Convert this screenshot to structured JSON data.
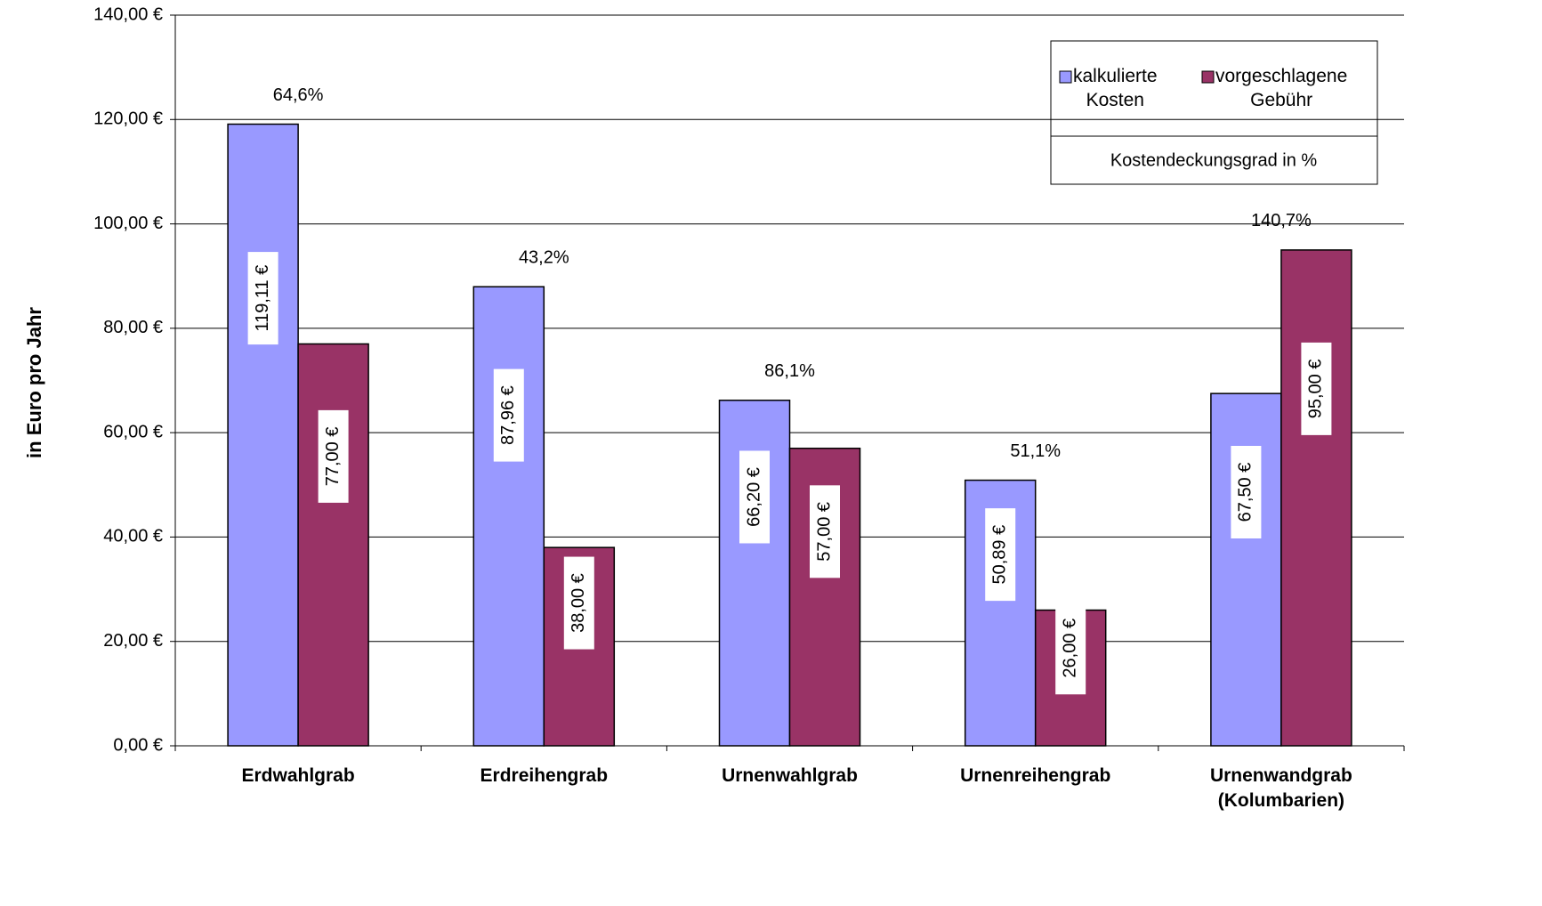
{
  "chart_data": {
    "type": "bar",
    "y_label": "in Euro pro Jahr",
    "categories": [
      "Erdwahlgrab",
      "Erdreihengrab",
      "Urnenwahlgrab",
      "Urnenreihengrab",
      "Urnenwandgrab\n(Kolumbarien)"
    ],
    "series": [
      {
        "name": "kalkulierte\nKosten",
        "color": "#9999ff",
        "values": [
          119.11,
          87.96,
          66.2,
          50.89,
          67.5
        ],
        "value_labels": [
          "119,11 €",
          "87,96 €",
          "66,20 €",
          "50,89 €",
          "67,50 €"
        ]
      },
      {
        "name": "vorgeschlagene\nGebühr",
        "color": "#993366",
        "values": [
          77,
          38,
          57,
          26,
          95
        ],
        "value_labels": [
          "77,00 €",
          "38,00 €",
          "57,00 €",
          "26,00 €",
          "95,00 €"
        ]
      }
    ],
    "coverage": {
      "name": "Kostendeckungsgrad in %",
      "values": [
        64.6,
        43.2,
        86.1,
        51.1,
        140.7
      ],
      "value_labels": [
        "64,6%",
        "43,2%",
        "86,1%",
        "51,1%",
        "140,7%"
      ]
    },
    "ylim": [
      0,
      140
    ],
    "yticks": [
      {
        "value": 0,
        "label": "0,00 €"
      },
      {
        "value": 20,
        "label": "20,00 €"
      },
      {
        "value": 40,
        "label": "40,00 €"
      },
      {
        "value": 60,
        "label": "60,00 €"
      },
      {
        "value": 80,
        "label": "80,00 €"
      },
      {
        "value": 100,
        "label": "100,00 €"
      },
      {
        "value": 120,
        "label": "120,00 €"
      },
      {
        "value": 140,
        "label": "140,00 €"
      }
    ],
    "grid": true
  }
}
